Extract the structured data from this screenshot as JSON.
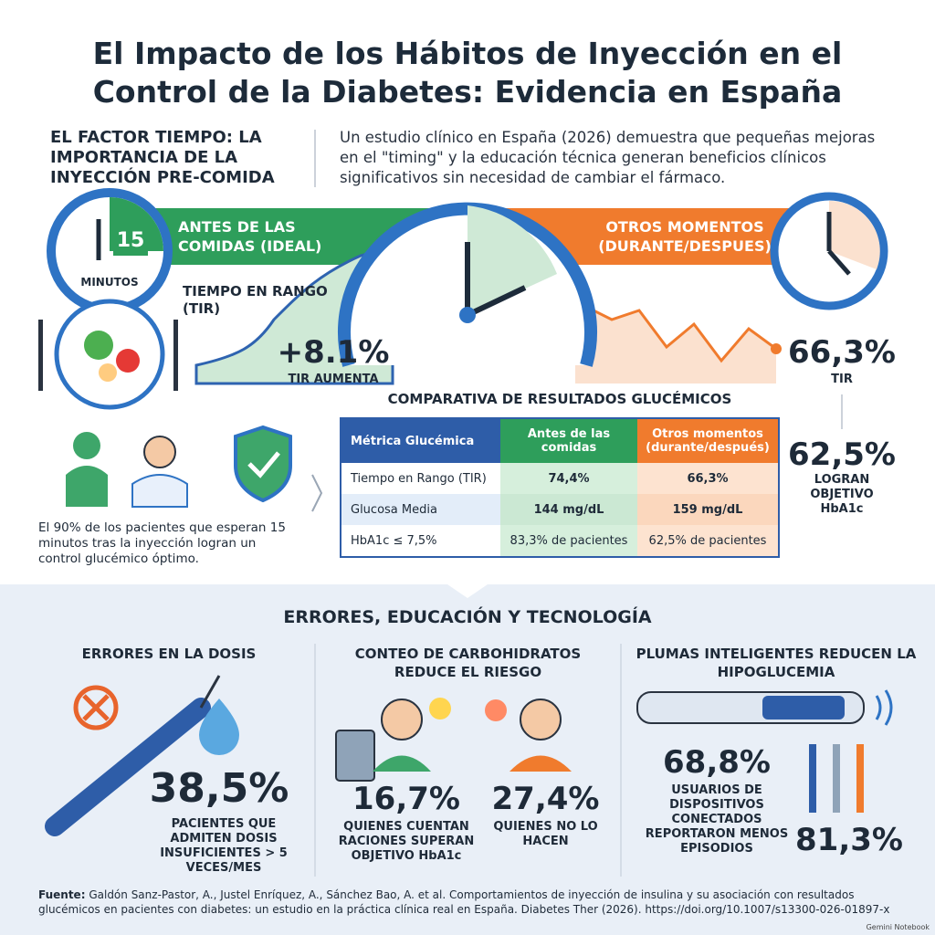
{
  "header": {
    "title": "El Impacto de los Hábitos de Inyección en el Control de la Diabetes: Evidencia en España"
  },
  "timing": {
    "heading": "EL FACTOR TIEMPO: LA IMPORTANCIA DE LA INYECCIÓN PRE-COMIDA",
    "intro": "Un estudio clínico en España (2026) demuestra que pequeñas mejoras en el \"timing\" y la educación técnica generan beneficios clínicos significativos sin necesidad de cambiar el fármaco.",
    "clock_number": "15",
    "clock_unit": "MINUTOS",
    "before_banner": "ANTES DE LAS COMIDAS (IDEAL)",
    "other_banner": "OTROS MOMENTOS (DURANTE/DESPUES)",
    "tir_label": "TIEMPO EN RANGO (TIR)",
    "tir_increase": "+8.1%",
    "tir_increase_label": "TIR AUMENTA",
    "other_tir": "66,3%",
    "other_tir_label": "TIR",
    "other_hba1c": "62,5%",
    "other_hba1c_label": "LOGRAN OBJETIVO HbA1c",
    "patients_note": "El 90% de los pacientes que esperan 15 minutos tras la inyección logran un control glucémico óptimo."
  },
  "table": {
    "title": "COMPARATIVA DE RESULTADOS GLUCÉMICOS",
    "header": [
      "Métrica Glucémica",
      "Antes de las comidas",
      "Otros momentos (durante/después)"
    ],
    "rows": [
      [
        "Tiempo en Rango (TIR)",
        "74,4%",
        "66,3%"
      ],
      [
        "Glucosa Media",
        "144 mg/dL",
        "159 mg/dL"
      ],
      [
        "HbA1c ≤ 7,5%",
        "83,3% de pacientes",
        "62,5% de pacientes"
      ]
    ]
  },
  "education": {
    "title": "ERRORES, EDUCACIÓN Y TECNOLOGÍA",
    "columns": [
      {
        "heading": "ERRORES EN LA DOSIS",
        "stat": "38,5%",
        "label": "PACIENTES QUE ADMITEN DOSIS INSUFICIENTES > 5 VECES/MES"
      },
      {
        "heading": "CONTEO DE CARBOHIDRATOS REDUCE EL RIESGO",
        "stat": "16,7%",
        "label": "QUIENES CUENTAN RACIONES SUPERAN OBJETIVO HbA1c",
        "stat2": "27,4%",
        "label2": "QUIENES NO LO HACEN"
      },
      {
        "heading": "PLUMAS INTELIGENTES REDUCEN LA HIPOGLUCEMIA",
        "stat": "68,8%",
        "label": "USUARIOS DE DISPOSITIVOS CONECTADOS REPORTARON MENOS EPISODIOS",
        "stat2": "81,3%"
      }
    ]
  },
  "footer": {
    "source_label": "Fuente:",
    "source": "Galdón Sanz-Pastor, A., Justel Enríquez, A., Sánchez Bao, A. et al. Comportamientos de inyección de insulina y su asociación con resultados glucémicos en pacientes con diabetes: un estudio en la práctica clínica real en España. Diabetes Ther (2026). https://doi.org/10.1007/s13300-026-01897-x",
    "watermark": "Gemini Notebook"
  }
}
